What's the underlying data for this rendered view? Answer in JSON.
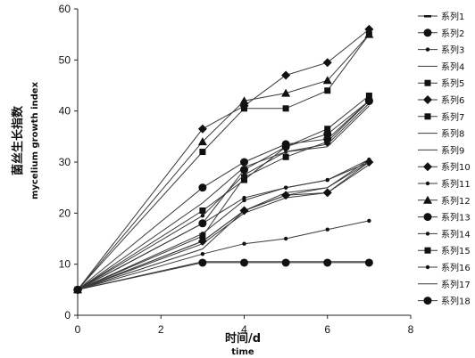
{
  "chart_data": {
    "type": "line",
    "x": [
      0,
      3,
      4,
      5,
      6,
      7
    ],
    "xlim": [
      0,
      8
    ],
    "ylim": [
      0,
      60
    ],
    "xticks": [
      "0",
      "2",
      "4",
      "6",
      "8"
    ],
    "yticks": [
      "0",
      "10",
      "20",
      "30",
      "40",
      "50",
      "60"
    ],
    "xlabel_cn": "时间/d",
    "xlabel_en": "time",
    "ylabel_cn": "菌丝生长指数",
    "ylabel_en": "mycelium growth index",
    "legend_position": "right",
    "grid": false,
    "series": [
      {
        "name": "系列1",
        "marker": "dash",
        "values": [
          5,
          10.5,
          10.5,
          10.5,
          10.5,
          10.5
        ]
      },
      {
        "name": "系列2",
        "marker": "circle",
        "values": [
          5,
          10.3,
          10.3,
          10.3,
          10.3,
          10.3
        ]
      },
      {
        "name": "系列3",
        "marker": "dot",
        "values": [
          5,
          12,
          14,
          15,
          16.8,
          18.5
        ]
      },
      {
        "name": "系列4",
        "marker": "none",
        "values": [
          5,
          14,
          20,
          23,
          24,
          29.5
        ]
      },
      {
        "name": "系列5",
        "marker": "square",
        "values": [
          5,
          15.5,
          27,
          31,
          34,
          42
        ]
      },
      {
        "name": "系列6",
        "marker": "diamond",
        "values": [
          5,
          36.5,
          41,
          47,
          49.5,
          56
        ]
      },
      {
        "name": "系列7",
        "marker": "square",
        "values": [
          5,
          32,
          40.5,
          40.5,
          44,
          55
        ]
      },
      {
        "name": "系列8",
        "marker": "none",
        "values": [
          5,
          14.5,
          20.5,
          24,
          25,
          30
        ]
      },
      {
        "name": "系列9",
        "marker": "none",
        "values": [
          5,
          13,
          20.5,
          23.5,
          25,
          30.5
        ]
      },
      {
        "name": "系列10",
        "marker": "diamond",
        "values": [
          5,
          14.5,
          20.5,
          23.5,
          24,
          30
        ]
      },
      {
        "name": "系列11",
        "marker": "dot",
        "values": [
          5,
          16,
          22.5,
          25,
          26.5,
          30.5
        ]
      },
      {
        "name": "系列12",
        "marker": "triangle",
        "values": [
          5,
          34,
          42,
          43.5,
          46,
          55
        ]
      },
      {
        "name": "系列13",
        "marker": "circle",
        "values": [
          5,
          25,
          30,
          33.5,
          34.5,
          42
        ]
      },
      {
        "name": "系列14",
        "marker": "dot",
        "values": [
          5,
          18,
          23,
          25,
          26.5,
          30
        ]
      },
      {
        "name": "系列15",
        "marker": "square",
        "values": [
          5,
          20.5,
          26.5,
          33,
          36.5,
          43
        ]
      },
      {
        "name": "系列16",
        "marker": "dot",
        "values": [
          5,
          19.5,
          27.5,
          32,
          33.5,
          41.5
        ]
      },
      {
        "name": "系列17",
        "marker": "none",
        "values": [
          5,
          22,
          29,
          32,
          33,
          41
        ]
      },
      {
        "name": "系列18",
        "marker": "circle",
        "values": [
          5,
          18,
          28.5,
          33,
          35.5,
          42
        ]
      }
    ]
  }
}
